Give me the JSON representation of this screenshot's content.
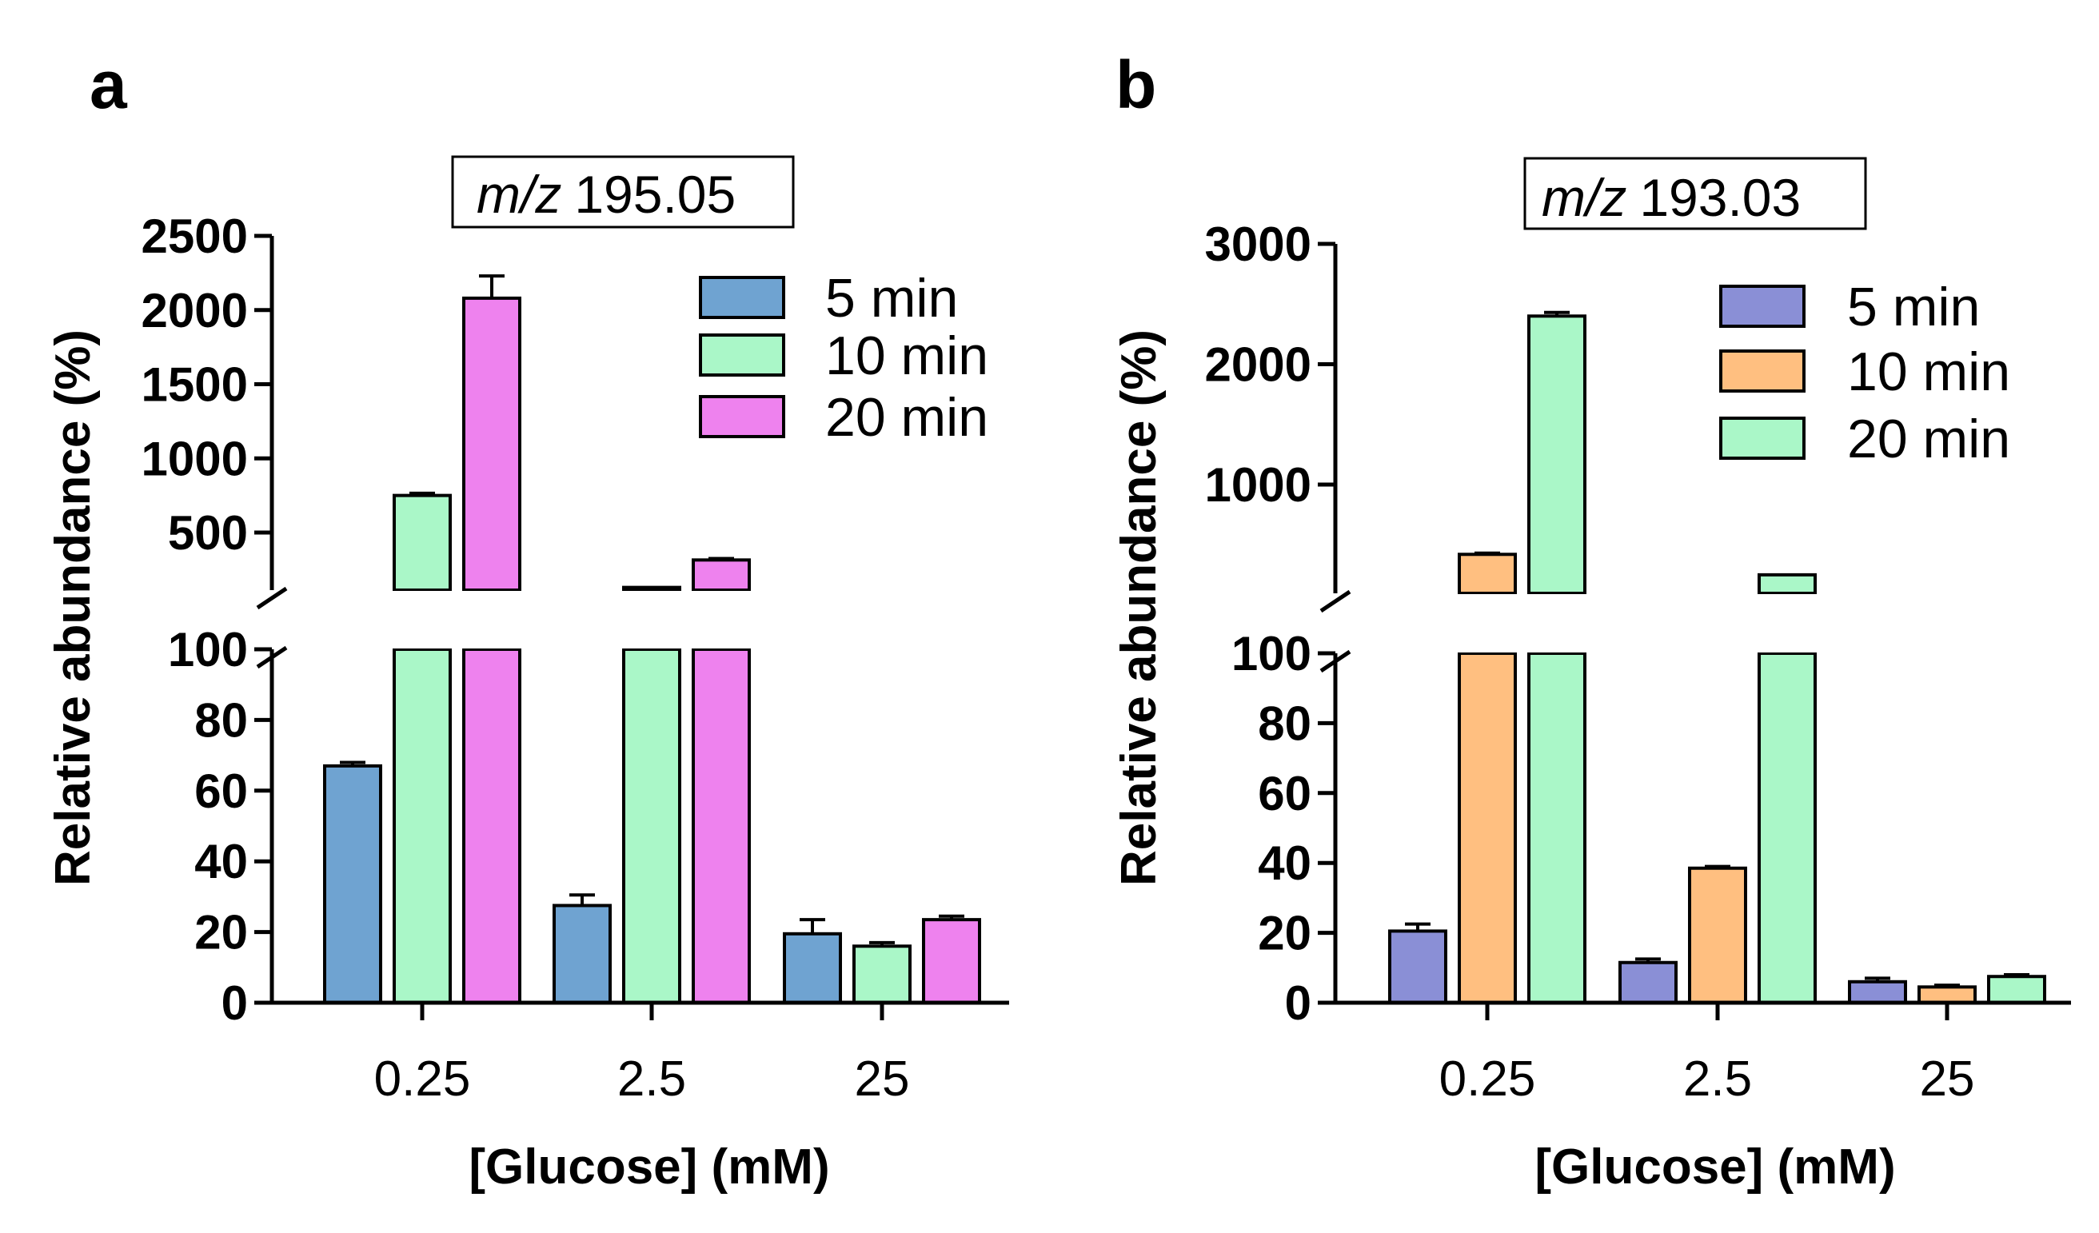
{
  "figure": {
    "panels": [
      {
        "letter": "a",
        "mz_prefix": "m/z",
        "mz_value": "195.05"
      },
      {
        "letter": "b",
        "mz_prefix": "m/z",
        "mz_value": "193.03"
      }
    ]
  },
  "chart_data": [
    {
      "type": "bar",
      "panel": "a",
      "title": "m/z 195.05",
      "xlabel": "[Glucose] (mM)",
      "ylabel": "Relative abundance (%)",
      "categories": [
        "0.25",
        "2.5",
        "25"
      ],
      "axis_break": true,
      "lower_ylim": [
        0,
        100
      ],
      "lower_ticks": [
        "0",
        "20",
        "40",
        "60",
        "80",
        "100"
      ],
      "upper_ylim": [
        100,
        2500
      ],
      "upper_ticks": [
        "500",
        "1000",
        "1500",
        "2000",
        "2500"
      ],
      "upper_tick_values": [
        500,
        1000,
        1500,
        2000,
        2500
      ],
      "legend_position": "top-right",
      "series": [
        {
          "name": "5 min",
          "color": "#6fa3d1",
          "values": [
            67,
            27.5,
            19.5
          ],
          "errors": [
            1,
            3,
            4
          ]
        },
        {
          "name": "10 min",
          "color": "#aaf7c8",
          "values": [
            750,
            130,
            16
          ],
          "errors": [
            15,
            5,
            1
          ]
        },
        {
          "name": "20 min",
          "color": "#ee82ee",
          "values": [
            2080,
            315,
            23.5
          ],
          "errors": [
            150,
            10,
            1
          ]
        }
      ]
    },
    {
      "type": "bar",
      "panel": "b",
      "title": "m/z 193.03",
      "xlabel": "[Glucose] (mM)",
      "ylabel": "Relative abundance (%)",
      "categories": [
        "0.25",
        "2.5",
        "25"
      ],
      "axis_break": true,
      "lower_ylim": [
        0,
        100
      ],
      "lower_ticks": [
        "0",
        "20",
        "40",
        "60",
        "80",
        "100"
      ],
      "upper_ylim": [
        100,
        3000
      ],
      "upper_ticks": [
        "1000",
        "2000",
        "3000"
      ],
      "upper_tick_values": [
        1000,
        2000,
        3000
      ],
      "legend_position": "top-right",
      "series": [
        {
          "name": "5 min",
          "color": "#8a8fd6",
          "values": [
            20.5,
            11.5,
            6
          ],
          "errors": [
            2,
            1,
            1
          ]
        },
        {
          "name": "10 min",
          "color": "#ffbf80",
          "values": [
            420,
            38.5,
            4.5
          ],
          "errors": [
            10,
            0.5,
            0.5
          ]
        },
        {
          "name": "20 min",
          "color": "#aaf7c8",
          "values": [
            2400,
            250,
            7.5
          ],
          "errors": [
            30,
            5,
            0.5
          ]
        }
      ]
    }
  ]
}
